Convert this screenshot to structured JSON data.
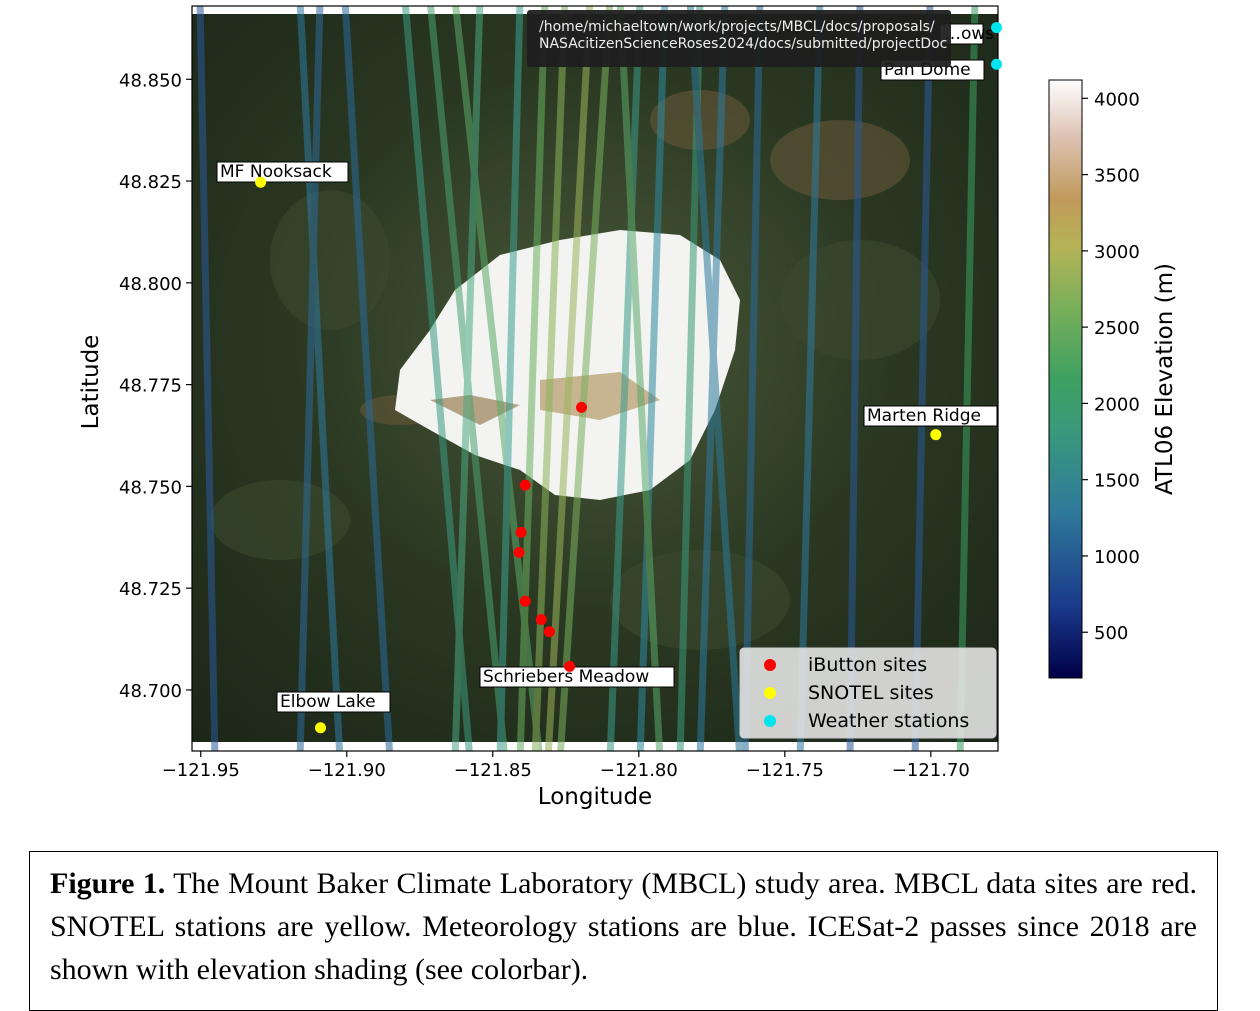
{
  "tooltip": {
    "line1": "/home/michaeltown/work/projects/MBCL/docs/proposals/",
    "line2": "NASAcitizenScienceRoses2024/docs/submitted/projectDoc"
  },
  "chart_data": {
    "type": "scatter",
    "background": "satellite image of Mount Baker with ICESat-2 ATL06 ground tracks",
    "xlabel": "Longitude",
    "ylabel": "Latitude",
    "xlim": [
      -121.953,
      -121.677
    ],
    "ylim": [
      48.685,
      48.868
    ],
    "x_ticks": [
      -121.95,
      -121.9,
      -121.85,
      -121.8,
      -121.75,
      -121.7
    ],
    "x_tick_labels": [
      "−121.95",
      "−121.90",
      "−121.85",
      "−121.80",
      "−121.75",
      "−121.70"
    ],
    "y_ticks": [
      48.7,
      48.725,
      48.75,
      48.775,
      48.8,
      48.825,
      48.85
    ],
    "y_tick_labels": [
      "48.700",
      "48.725",
      "48.750",
      "48.775",
      "48.800",
      "48.825",
      "48.850"
    ],
    "series": [
      {
        "name": "iButton sites",
        "color": "#ff0000",
        "points": [
          {
            "x": -121.8196,
            "y": 48.7694
          },
          {
            "x": -121.8389,
            "y": 48.7503
          },
          {
            "x": -121.8403,
            "y": 48.7387
          },
          {
            "x": -121.841,
            "y": 48.7338
          },
          {
            "x": -121.8389,
            "y": 48.7218
          },
          {
            "x": -121.8334,
            "y": 48.7173
          },
          {
            "x": -121.8306,
            "y": 48.7143
          },
          {
            "x": -121.8237,
            "y": 48.7058
          }
        ]
      },
      {
        "name": "SNOTEL sites",
        "color": "#ffff00",
        "points": [
          {
            "x": -121.9295,
            "y": 48.8247,
            "label": "MF Nooksack"
          },
          {
            "x": -121.909,
            "y": 48.6907,
            "label": "Elbow Lake"
          },
          {
            "x": -121.6983,
            "y": 48.7627,
            "label": "Marten Ridge"
          }
        ]
      },
      {
        "name": "Weather stations",
        "color": "#00e5ee",
        "points": [
          {
            "x": -121.6775,
            "y": 48.8627,
            "label": "…ows"
          },
          {
            "x": -121.6775,
            "y": 48.8537,
            "label": "Pan Dome"
          }
        ]
      }
    ],
    "site_labels": [
      "MF Nooksack",
      "Elbow Lake",
      "Marten Ridge",
      "Schriebers Meadow",
      "…ows",
      "Pan Dome"
    ],
    "legend": {
      "position": "lower right",
      "entries": [
        "iButton sites",
        "SNOTEL sites",
        "Weather stations"
      ]
    },
    "colorbar": {
      "label": "ATL06 Elevation (m)",
      "range": [
        200,
        4120
      ],
      "ticks": [
        500,
        1000,
        1500,
        2000,
        2500,
        3000,
        3500,
        4000
      ],
      "tick_labels": [
        "500",
        "1000",
        "1500",
        "2000",
        "2500",
        "3000",
        "3500",
        "4000"
      ],
      "colormap": "gist_earth"
    },
    "grid": false
  },
  "caption": {
    "label": "Figure 1.",
    "text": " The Mount Baker Climate Laboratory (MBCL) study area. MBCL data sites are red. SNOTEL stations are yellow. Meteorology stations are blue. ICESat-2 passes since 2018 are shown with elevation shading (see colorbar)."
  }
}
